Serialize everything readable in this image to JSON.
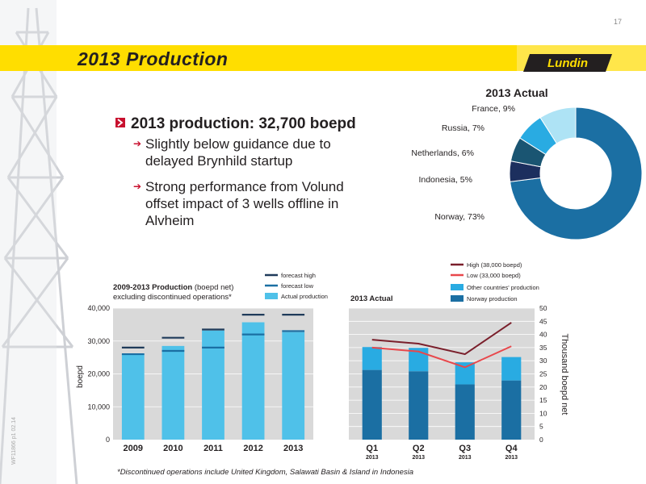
{
  "page_number": "17",
  "slide_title": "2013 Production",
  "logo_text": "Lundin",
  "bullets": {
    "main": "2013 production:  32,700 boepd",
    "subs": [
      "Slightly below guidance due to delayed Brynhild startup",
      "Strong performance from Volund offset impact of 3 wells offline in Alvheim"
    ]
  },
  "footnote": "*Discontinued operations include United Kingdom, Salawati Basin & Island in Indonesia",
  "side_note": "WF11866 p1 02.14",
  "colors": {
    "accent_yellow": "#ffde00",
    "bar_light": "#4fc1e9",
    "norway_dark": "#1b6fa3",
    "other_light": "#29abe2",
    "forecast_high": "#1f3b5a",
    "high_line": "#7a1f2b",
    "low_line": "#e8474b",
    "bullet_red": "#c8102e",
    "plot_bg": "#d9d9d9"
  },
  "chart_data": [
    {
      "type": "pie",
      "title": "2013 Actual",
      "slices": [
        {
          "label": "Norway, 73%",
          "value": 73,
          "color": "#1b6fa3"
        },
        {
          "label": "Indonesia, 5%",
          "value": 5,
          "color": "#1c2f5e"
        },
        {
          "label": "Netherlands, 6%",
          "value": 6,
          "color": "#1a5572"
        },
        {
          "label": "Russia, 7%",
          "value": 7,
          "color": "#29abe2"
        },
        {
          "label": "France, 9%",
          "value": 9,
          "color": "#aee3f5"
        }
      ]
    },
    {
      "type": "bar",
      "title": "2009-2013 Production",
      "title_suffix": " (boepd net)",
      "subtitle": "excluding discontinued operations*",
      "ylabel": "boepd",
      "ylim": [
        0,
        40000
      ],
      "yticks": [
        "0",
        "10,000",
        "20,000",
        "30,000",
        "40,000"
      ],
      "categories": [
        "2009",
        "2010",
        "2011",
        "2012",
        "2013"
      ],
      "series": [
        {
          "name": "Actual production",
          "values": [
            26000,
            28500,
            33200,
            35700,
            32700
          ],
          "color": "#4fc1e9"
        }
      ],
      "forecast_high": [
        28000,
        31000,
        33500,
        38000,
        38000
      ],
      "forecast_low": [
        26000,
        27000,
        28000,
        32000,
        33000
      ],
      "legend": {
        "high": "forecast high",
        "low": "forecast low",
        "actual": "Actual production"
      }
    },
    {
      "type": "bar",
      "title": "2013 Actual",
      "ylabel": "Thousand boepd net",
      "ylim": [
        0,
        50
      ],
      "yticks": [
        "0",
        "5",
        "10",
        "15",
        "20",
        "25",
        "30",
        "35",
        "40",
        "45",
        "50"
      ],
      "categories": [
        "Q1",
        "Q2",
        "Q3",
        "Q4"
      ],
      "category_sublabel": "2013",
      "series": [
        {
          "name": "Norway production",
          "values": [
            26.5,
            26,
            21,
            22.5
          ],
          "color": "#1b6fa3"
        },
        {
          "name": "Other countries' production",
          "values": [
            8.7,
            8.9,
            8.4,
            8.9
          ],
          "color": "#29abe2"
        },
        {
          "name": "High (38,000 boepd)",
          "type": "line",
          "values": [
            38,
            36.5,
            32.5,
            44.5
          ],
          "color": "#7a1f2b"
        },
        {
          "name": "Low (33,000 boepd)",
          "type": "line",
          "values": [
            35,
            33.5,
            27.5,
            35.5
          ],
          "color": "#e8474b"
        }
      ]
    }
  ]
}
